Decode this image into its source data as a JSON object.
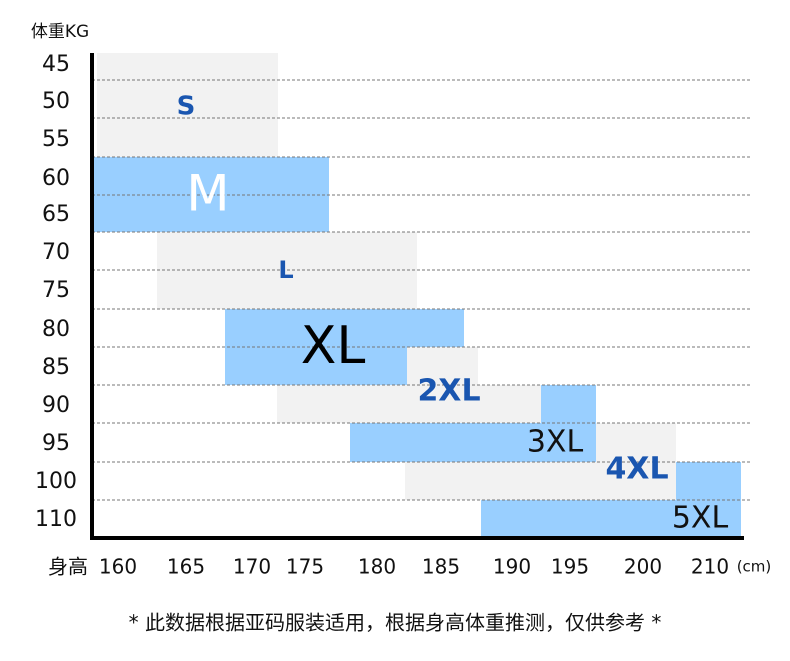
{
  "y_axis": {
    "title": "体重KG",
    "labels": [
      "45",
      "50",
      "55",
      "60",
      "65",
      "70",
      "75",
      "80",
      "85",
      "90",
      "95",
      "100",
      "110"
    ]
  },
  "x_axis": {
    "title": "身高",
    "labels": [
      "160",
      "165",
      "170",
      "175",
      "180",
      "185",
      "190",
      "195",
      "200",
      "210"
    ],
    "unit": "(cm)"
  },
  "sizes": [
    "S",
    "M",
    "L",
    "XL",
    "2XL",
    "3XL",
    "4XL",
    "5XL"
  ],
  "footnote": "* 此数据根据亚码服装适用，根据身高体重推测，仅供参考 *"
}
